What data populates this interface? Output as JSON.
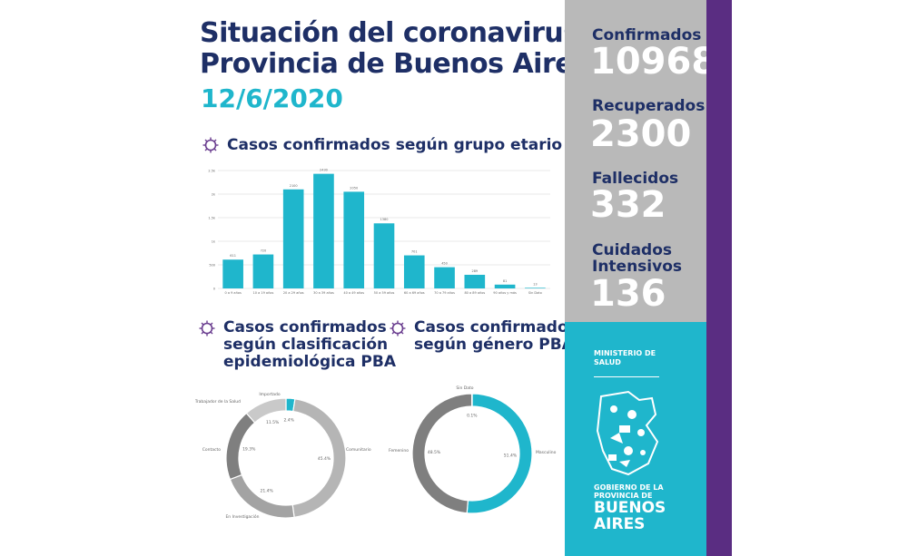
{
  "header": {
    "title_line1": "Situación del coronavirus en",
    "title_line2": "Provincia de Buenos Aires.",
    "date": "12/6/2020"
  },
  "sections": {
    "age": "Casos confirmados según grupo etario PBA",
    "epi": "Casos confirmados\nsegún clasificación\nepidemiológica PBA",
    "gender": "Casos confirmados\nsegún género PBA"
  },
  "stats": {
    "confirmed_label": "Confirmados",
    "confirmed_value": "10968",
    "recovered_label": "Recuperados",
    "recovered_value": "2300",
    "deaths_label": "Fallecidos",
    "deaths_value": "332",
    "icu_label": "Cuidados\nIntensivos",
    "icu_value": "136"
  },
  "ministry": {
    "label": "MINISTERIO DE\nSALUD",
    "gov_small": "GOBIERNO DE LA\nPROVINCIA DE",
    "gov_big": "BUENOS\nAIRES"
  },
  "colors": {
    "navy": "#1e2f66",
    "teal": "#1fb6cc",
    "gray_panel": "#b9b9b9",
    "purple": "#5a2d82",
    "donut_dark": "#7f7f7f",
    "donut_light": "#b5b5b5"
  },
  "icons": {
    "section": "virus-icon",
    "logo": "province-map-icon"
  },
  "chart_data": [
    {
      "type": "bar",
      "title": "Casos confirmados según grupo etario PBA",
      "categories": [
        "0 a 9 años",
        "10 a 19 años",
        "20 a 29 años",
        "30 a 39 años",
        "40 a 49 años",
        "50 a 59 años",
        "60 a 69 años",
        "70 a 79 años",
        "80 a 89 años",
        "90 años y más",
        "Sin Dato"
      ],
      "values": [
        611,
        720,
        2100,
        2430,
        2050,
        1380,
        701,
        450,
        289,
        81,
        13
      ],
      "yticks": [
        "0",
        "500",
        "1k",
        "1.5k",
        "2k",
        "2.5k"
      ],
      "ylim": [
        0,
        2500
      ],
      "grid": true
    },
    {
      "type": "pie",
      "title": "Casos confirmados según clasificación epidemiológica PBA",
      "labels": [
        "Importado",
        "Comunitario",
        "En Investigación",
        "Contacto",
        "Trabajador de la Salud"
      ],
      "values": [
        2.4,
        45.4,
        21.4,
        19.3,
        11.5
      ],
      "value_labels": [
        "2.4%",
        "45.4%",
        "21.4%",
        "19.3%",
        "11.5%"
      ],
      "colors": [
        "#1fb6cc",
        "#b5b5b5",
        "#a3a3a3",
        "#7f7f7f",
        "#c9c9c9"
      ]
    },
    {
      "type": "pie",
      "title": "Casos confirmados según género PBA",
      "labels": [
        "Masculino",
        "Femenino",
        "Sin Dato"
      ],
      "values": [
        51.4,
        48.5,
        0.1
      ],
      "value_labels": [
        "51.4%",
        "48.5%",
        "0.1%"
      ],
      "colors": [
        "#1fb6cc",
        "#7f7f7f",
        "#cccccc"
      ]
    }
  ]
}
